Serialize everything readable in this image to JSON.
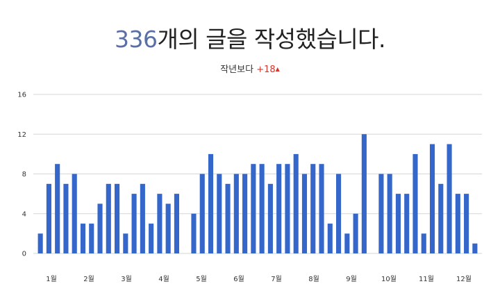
{
  "header": {
    "count": "336",
    "headline_rest": "개의 글을 작성했습니다.",
    "compare_label": "작년보다",
    "compare_delta": "+18",
    "compare_arrow": "▲"
  },
  "colors": {
    "bar": "#3467c9",
    "count": "#5a6fa5",
    "delta": "#d9342b"
  },
  "chart_data": {
    "type": "bar",
    "title": "",
    "xlabel": "",
    "ylabel": "",
    "ylim": [
      0,
      16
    ],
    "yticks": [
      0,
      4,
      8,
      12,
      16
    ],
    "grid": true,
    "month_labels": [
      "1월",
      "2월",
      "3월",
      "4월",
      "5월",
      "6월",
      "7월",
      "8월",
      "9월",
      "10월",
      "11월",
      "12월"
    ],
    "values": [
      2,
      7,
      9,
      7,
      8,
      3,
      3,
      5,
      7,
      7,
      2,
      6,
      7,
      3,
      6,
      5,
      6,
      0,
      4,
      8,
      10,
      8,
      7,
      8,
      8,
      9,
      9,
      7,
      9,
      9,
      10,
      8,
      9,
      9,
      3,
      8,
      2,
      4,
      12,
      0,
      8,
      8,
      6,
      6,
      10,
      2,
      11,
      7,
      11,
      6,
      6,
      1
    ]
  }
}
